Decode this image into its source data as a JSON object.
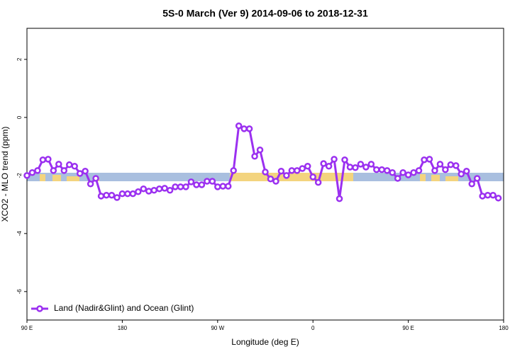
{
  "chart_data": {
    "type": "line",
    "title": "5S-0 March (Ver 9)   2014-09-06 to 2018-12-31",
    "x_label": "Longitude (deg E)",
    "y_label": "XCO2 - MLO trend (ppm)",
    "xlim": [
      90,
      540
    ],
    "ylim": [
      -6.98,
      3.07
    ],
    "xticks": [
      {
        "value": 90,
        "label": "90 E"
      },
      180,
      {
        "value": 270,
        "label": "90 W"
      },
      {
        "value": 360,
        "label": "0"
      },
      {
        "value": 450,
        "label": "90 E"
      },
      {
        "value": 540,
        "label": "180"
      }
    ],
    "yticks": [
      2,
      0,
      -2,
      -4,
      -6
    ],
    "legend": "bottom-left",
    "x": [
      90,
      95,
      100,
      105,
      110,
      115,
      120,
      125,
      130,
      135,
      140,
      145,
      150,
      155,
      160,
      165,
      170,
      175,
      180,
      185,
      190,
      195,
      200,
      205,
      210,
      215,
      220,
      225,
      230,
      235,
      240,
      245,
      250,
      255,
      260,
      265,
      270,
      275,
      280,
      285,
      290,
      295,
      300,
      305,
      310,
      315,
      320,
      325,
      330,
      335,
      340,
      345,
      350,
      355,
      360,
      365,
      370,
      375,
      380,
      385,
      390,
      395,
      400,
      405,
      410,
      415,
      420,
      425,
      430,
      435,
      440,
      445,
      450,
      455,
      460,
      465,
      470,
      475,
      480,
      485,
      490,
      495,
      500,
      505,
      510,
      515,
      520,
      525,
      530,
      535
    ],
    "series": [
      {
        "name": "Land (Nadir&Glint) and Ocean (Glint)",
        "color": "#9b30f0",
        "values": [
          -2.0,
          -1.9,
          -1.83,
          -1.46,
          -1.44,
          -1.83,
          -1.61,
          -1.83,
          -1.63,
          -1.68,
          -1.93,
          -1.85,
          -2.29,
          -2.1,
          -2.71,
          -2.68,
          -2.68,
          -2.76,
          -2.63,
          -2.63,
          -2.63,
          -2.56,
          -2.46,
          -2.54,
          -2.51,
          -2.46,
          -2.44,
          -2.51,
          -2.39,
          -2.39,
          -2.39,
          -2.22,
          -2.32,
          -2.32,
          -2.2,
          -2.2,
          -2.39,
          -2.37,
          -2.37,
          -1.83,
          -0.29,
          -0.39,
          -0.39,
          -1.34,
          -1.12,
          -1.88,
          -2.12,
          -2.2,
          -1.85,
          -2.0,
          -1.83,
          -1.83,
          -1.76,
          -1.68,
          -2.05,
          -2.24,
          -1.59,
          -1.68,
          -1.44,
          -2.8,
          -1.46,
          -1.71,
          -1.73,
          -1.61,
          -1.71,
          -1.61,
          -1.8,
          -1.8,
          -1.83,
          -1.9,
          -2.1,
          -1.9,
          -1.98,
          -1.9,
          -1.83,
          -1.46,
          -1.44,
          -1.83,
          -1.61,
          -1.8,
          -1.63,
          -1.66,
          -1.95,
          -1.85,
          -2.29,
          -2.1,
          -2.71,
          -2.68,
          -2.68,
          -2.78
        ]
      }
    ]
  }
}
